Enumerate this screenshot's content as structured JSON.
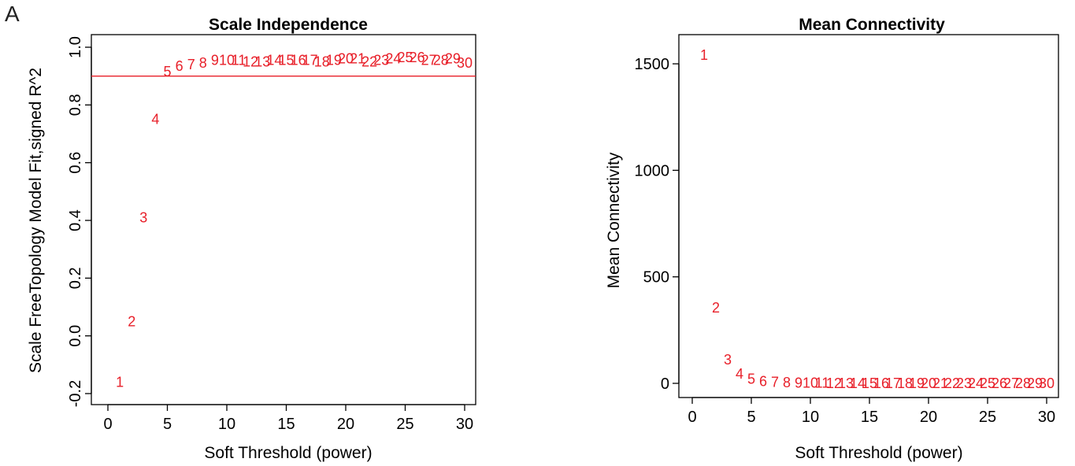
{
  "panel_label": "A",
  "chart_data": [
    {
      "type": "scatter",
      "title": "Scale Independence",
      "xlabel": "Soft Threshold (power)",
      "ylabel": "Scale FreeTopology Model Fit,signed R^2",
      "xlim": [
        0,
        30
      ],
      "ylim": [
        -0.2,
        1.0
      ],
      "x_ticks": [
        0,
        5,
        10,
        15,
        20,
        25,
        30
      ],
      "y_ticks": [
        -0.2,
        0.0,
        0.2,
        0.4,
        0.6,
        0.8,
        1.0
      ],
      "reference_line": {
        "y": 0.9,
        "color": "#e8202a"
      },
      "point_color": "#e8202a",
      "points": [
        {
          "x": 1,
          "y": -0.16
        },
        {
          "x": 2,
          "y": 0.05
        },
        {
          "x": 3,
          "y": 0.41
        },
        {
          "x": 4,
          "y": 0.75
        },
        {
          "x": 5,
          "y": 0.915
        },
        {
          "x": 6,
          "y": 0.935
        },
        {
          "x": 7,
          "y": 0.94
        },
        {
          "x": 8,
          "y": 0.945
        },
        {
          "x": 9,
          "y": 0.955
        },
        {
          "x": 10,
          "y": 0.955
        },
        {
          "x": 11,
          "y": 0.955
        },
        {
          "x": 12,
          "y": 0.95
        },
        {
          "x": 13,
          "y": 0.95
        },
        {
          "x": 14,
          "y": 0.955
        },
        {
          "x": 15,
          "y": 0.955
        },
        {
          "x": 16,
          "y": 0.955
        },
        {
          "x": 17,
          "y": 0.955
        },
        {
          "x": 18,
          "y": 0.95
        },
        {
          "x": 19,
          "y": 0.955
        },
        {
          "x": 20,
          "y": 0.96
        },
        {
          "x": 21,
          "y": 0.96
        },
        {
          "x": 22,
          "y": 0.95
        },
        {
          "x": 23,
          "y": 0.955
        },
        {
          "x": 24,
          "y": 0.96
        },
        {
          "x": 25,
          "y": 0.965
        },
        {
          "x": 26,
          "y": 0.965
        },
        {
          "x": 27,
          "y": 0.955
        },
        {
          "x": 28,
          "y": 0.955
        },
        {
          "x": 29,
          "y": 0.96
        },
        {
          "x": 30,
          "y": 0.945
        }
      ]
    },
    {
      "type": "scatter",
      "title": "Mean Connectivity",
      "xlabel": "Soft Threshold (power)",
      "ylabel": "Mean Connectivity",
      "xlim": [
        0,
        30
      ],
      "ylim": [
        0,
        1600
      ],
      "x_ticks": [
        0,
        5,
        10,
        15,
        20,
        25,
        30
      ],
      "y_ticks": [
        0,
        500,
        1000,
        1500
      ],
      "point_color": "#e8202a",
      "points": [
        {
          "x": 1,
          "y": 1540
        },
        {
          "x": 2,
          "y": 355
        },
        {
          "x": 3,
          "y": 110
        },
        {
          "x": 4,
          "y": 45
        },
        {
          "x": 5,
          "y": 20
        },
        {
          "x": 6,
          "y": 10
        },
        {
          "x": 7,
          "y": 6
        },
        {
          "x": 8,
          "y": 3
        },
        {
          "x": 9,
          "y": 2
        },
        {
          "x": 10,
          "y": 1
        },
        {
          "x": 11,
          "y": 1
        },
        {
          "x": 12,
          "y": 0
        },
        {
          "x": 13,
          "y": 0
        },
        {
          "x": 14,
          "y": 0
        },
        {
          "x": 15,
          "y": 0
        },
        {
          "x": 16,
          "y": 0
        },
        {
          "x": 17,
          "y": 0
        },
        {
          "x": 18,
          "y": 0
        },
        {
          "x": 19,
          "y": 0
        },
        {
          "x": 20,
          "y": 0
        },
        {
          "x": 21,
          "y": 0
        },
        {
          "x": 22,
          "y": 0
        },
        {
          "x": 23,
          "y": 0
        },
        {
          "x": 24,
          "y": 0
        },
        {
          "x": 25,
          "y": 0
        },
        {
          "x": 26,
          "y": 0
        },
        {
          "x": 27,
          "y": 0
        },
        {
          "x": 28,
          "y": 0
        },
        {
          "x": 29,
          "y": 0
        },
        {
          "x": 30,
          "y": 0
        }
      ]
    }
  ]
}
